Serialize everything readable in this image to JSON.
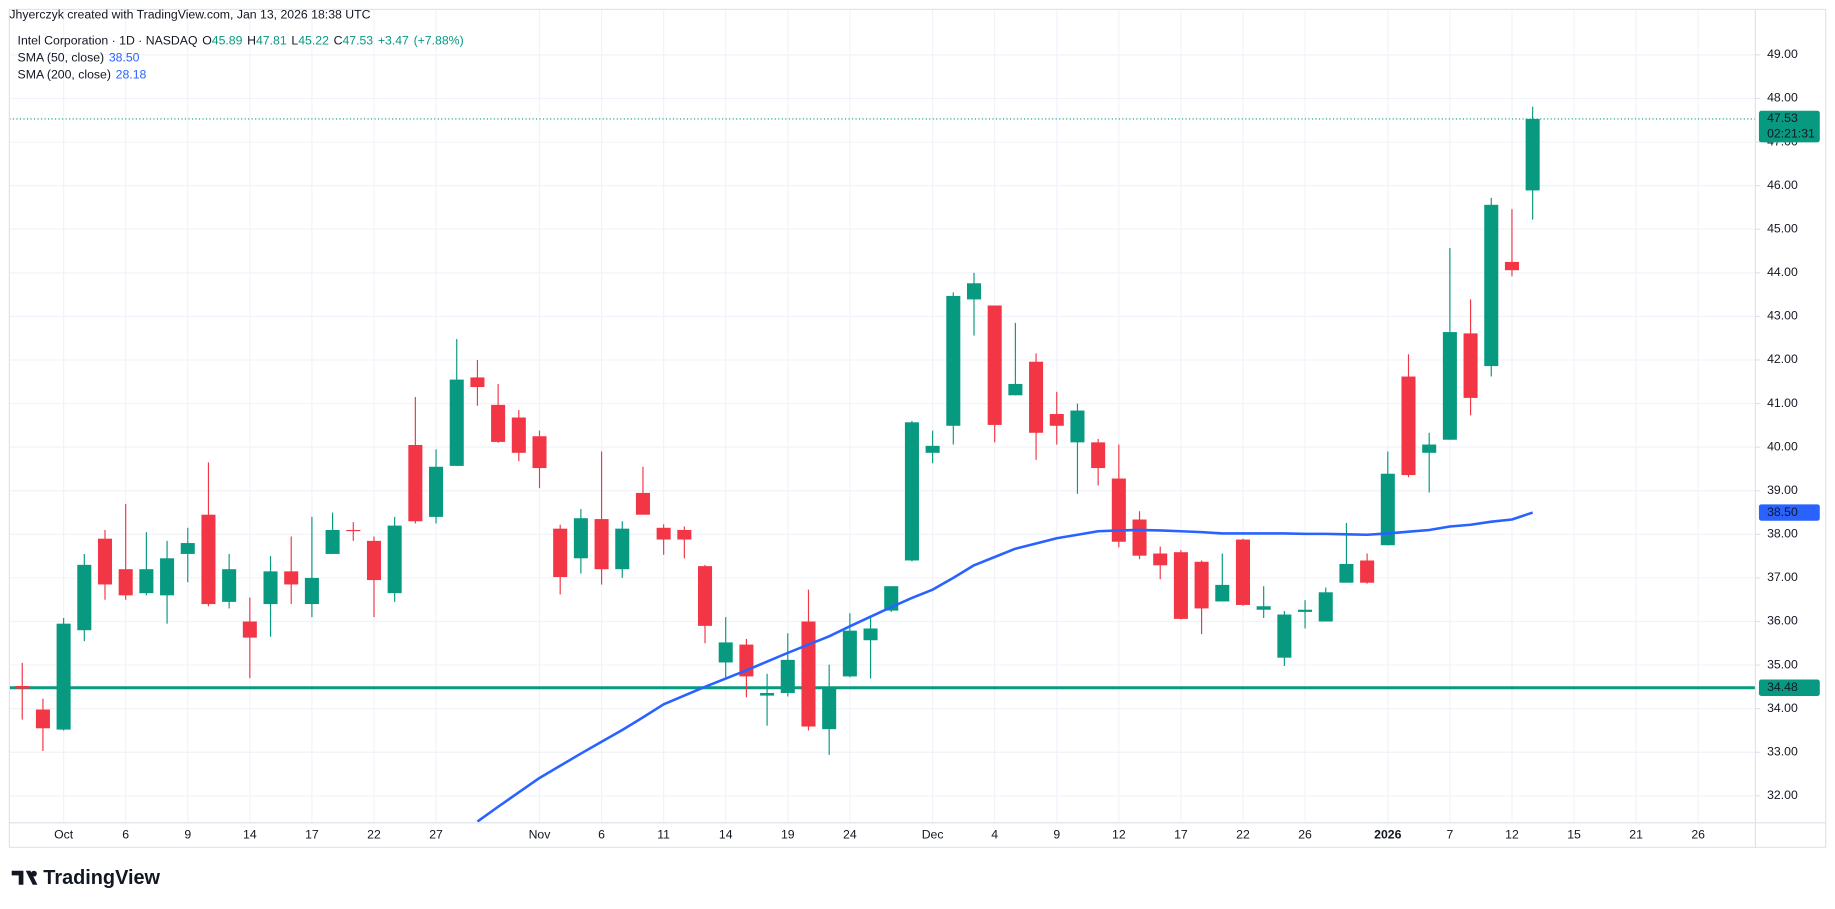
{
  "header": "Jhyerczyk created with TradingView.com, Jan 13, 2026 18:38 UTC",
  "footer_brand": "TradingView",
  "chart_data": {
    "type": "candlestick",
    "title": "Intel Corporation · 1D · NASDAQ",
    "legend": {
      "ohlc": [
        {
          "key": "O",
          "value": 45.89
        },
        {
          "key": "H",
          "value": 47.81
        },
        {
          "key": "L",
          "value": 45.22
        },
        {
          "key": "C",
          "value": 47.53
        }
      ],
      "change": {
        "value": 3.47,
        "label": "+3.47"
      },
      "change_pct": {
        "value": 7.88,
        "label": "(+7.88%)"
      }
    },
    "up_color": "#089981",
    "down_color": "#f23645",
    "categories": [
      null,
      null,
      "Oct",
      null,
      null,
      "6",
      null,
      null,
      "9",
      null,
      null,
      "14",
      null,
      null,
      "17",
      null,
      null,
      "22",
      null,
      null,
      "27",
      null,
      null,
      null,
      null,
      "Nov",
      null,
      null,
      "6",
      null,
      null,
      "11",
      null,
      null,
      "14",
      null,
      null,
      "19",
      null,
      null,
      "24",
      null,
      null,
      null,
      "Dec",
      null,
      null,
      "4",
      null,
      null,
      "9",
      null,
      null,
      "12",
      null,
      null,
      "17",
      null,
      null,
      "22",
      null,
      null,
      "26",
      null,
      null,
      null,
      "2026",
      null,
      null,
      "7",
      null,
      null,
      "12",
      null,
      null,
      "15",
      null,
      null,
      "21",
      null,
      null,
      "26"
    ],
    "open": [
      34.52,
      33.98,
      33.52,
      35.8,
      37.9,
      37.2,
      36.65,
      36.6,
      37.55,
      38.45,
      36.45,
      36.0,
      36.4,
      37.15,
      36.4,
      37.55,
      38.1,
      37.85,
      36.65,
      40.05,
      38.4,
      39.57,
      41.6,
      40.97,
      40.68,
      40.25,
      38.13,
      37.45,
      38.35,
      37.2,
      38.95,
      38.15,
      38.1,
      37.27,
      35.06,
      35.47,
      34.3,
      34.36,
      36.0,
      33.53,
      34.74,
      35.57,
      36.25,
      37.4,
      39.87,
      40.49,
      43.39,
      43.25,
      41.19,
      41.96,
      40.76,
      40.11,
      40.11,
      39.28,
      38.34,
      37.56,
      37.59,
      37.37,
      36.46,
      37.88,
      36.27,
      35.17,
      36.22,
      36.0,
      36.89,
      37.4,
      37.75,
      41.62,
      39.87,
      40.17,
      42.61,
      41.86,
      44.25,
      45.89,
      null,
      null,
      null,
      null,
      null,
      null,
      null,
      null
    ],
    "high": [
      35.05,
      34.23,
      36.08,
      37.55,
      38.1,
      38.7,
      38.05,
      37.85,
      38.15,
      39.65,
      37.55,
      36.55,
      37.5,
      37.95,
      38.4,
      38.5,
      38.28,
      37.95,
      38.4,
      41.15,
      39.95,
      42.48,
      42.0,
      41.45,
      40.85,
      40.38,
      38.22,
      38.58,
      39.9,
      38.3,
      39.55,
      38.23,
      38.18,
      37.3,
      36.1,
      35.6,
      34.8,
      35.73,
      36.73,
      35.01,
      36.19,
      36.08,
      36.81,
      40.6,
      40.38,
      43.55,
      44.0,
      43.25,
      42.85,
      42.15,
      41.27,
      41.0,
      40.19,
      40.06,
      38.53,
      37.72,
      37.64,
      37.4,
      37.56,
      37.9,
      36.81,
      36.24,
      36.49,
      36.78,
      38.26,
      37.56,
      39.9,
      42.13,
      40.33,
      44.57,
      43.39,
      45.72,
      45.46,
      47.81,
      null,
      null,
      null,
      null,
      null,
      null,
      null,
      null
    ],
    "low": [
      33.75,
      33.03,
      33.5,
      35.55,
      36.5,
      36.5,
      36.6,
      35.95,
      36.9,
      36.35,
      36.3,
      34.7,
      35.65,
      36.4,
      36.1,
      37.55,
      37.85,
      36.1,
      36.45,
      38.25,
      38.25,
      39.57,
      40.95,
      40.1,
      39.68,
      39.06,
      36.62,
      37.1,
      36.85,
      37.0,
      38.45,
      37.53,
      37.45,
      35.5,
      34.72,
      34.26,
      33.61,
      34.28,
      33.5,
      32.94,
      34.72,
      34.69,
      36.22,
      37.38,
      39.63,
      40.06,
      42.56,
      40.11,
      41.19,
      39.71,
      40.06,
      38.93,
      39.12,
      37.7,
      37.43,
      36.97,
      36.05,
      35.71,
      36.46,
      36.36,
      36.08,
      34.98,
      35.84,
      36.0,
      36.89,
      36.87,
      37.75,
      39.31,
      38.96,
      40.17,
      40.73,
      41.62,
      43.92,
      45.22,
      null,
      null,
      null,
      null,
      null,
      null,
      null,
      null
    ],
    "close": [
      34.46,
      33.55,
      35.95,
      37.3,
      36.85,
      36.6,
      37.2,
      37.45,
      37.8,
      36.4,
      37.2,
      35.63,
      37.15,
      36.85,
      37.0,
      38.1,
      38.08,
      36.95,
      38.2,
      38.3,
      39.55,
      41.55,
      41.38,
      40.12,
      39.87,
      39.52,
      37.02,
      38.37,
      37.2,
      38.13,
      38.45,
      37.88,
      37.88,
      35.9,
      35.52,
      34.74,
      34.36,
      35.12,
      33.59,
      34.5,
      35.79,
      35.84,
      36.81,
      40.57,
      40.03,
      43.47,
      43.76,
      40.51,
      41.45,
      40.33,
      40.49,
      40.84,
      39.52,
      37.83,
      37.51,
      37.29,
      36.06,
      36.3,
      36.84,
      36.38,
      36.35,
      36.16,
      36.27,
      36.67,
      37.32,
      36.89,
      39.39,
      39.36,
      40.06,
      42.64,
      41.13,
      45.56,
      44.06,
      47.53,
      null,
      null,
      null,
      null,
      null,
      null,
      null,
      null
    ],
    "series": [
      {
        "name": "SMA (50, close)",
        "color": "#2962ff",
        "last_value": {
          "value": 38.5,
          "label": "38.50"
        },
        "values": [
          null,
          null,
          null,
          null,
          null,
          null,
          null,
          null,
          null,
          null,
          null,
          null,
          null,
          null,
          null,
          null,
          null,
          null,
          null,
          null,
          null,
          null,
          31.41,
          31.75,
          32.08,
          32.41,
          32.69,
          32.97,
          33.24,
          33.51,
          33.8,
          34.1,
          34.3,
          34.5,
          34.69,
          34.88,
          35.08,
          35.28,
          35.47,
          35.66,
          35.89,
          36.11,
          36.33,
          36.54,
          36.73,
          37.0,
          37.29,
          37.48,
          37.67,
          37.79,
          37.91,
          37.99,
          38.07,
          38.09,
          38.1,
          38.09,
          38.07,
          38.05,
          38.02,
          38.02,
          38.02,
          38.02,
          38.01,
          38.01,
          38.0,
          37.99,
          38.02,
          38.06,
          38.1,
          38.18,
          38.22,
          38.29,
          38.34,
          38.5,
          null,
          null,
          null,
          null,
          null,
          null,
          null,
          null
        ]
      },
      {
        "name": "SMA (200, close)",
        "color": "#2962ff",
        "last_value": {
          "value": 28.18
        }
      }
    ],
    "last_price": {
      "value": 47.53,
      "countdown": "02:21:31"
    },
    "hlines": [
      {
        "value": 34.48,
        "color": "#089981"
      }
    ],
    "ylim": [
      31.41,
      49.99
    ],
    "yticks": [
      {
        "value": 32,
        "label": "32.00"
      },
      {
        "value": 33,
        "label": "33.00"
      },
      {
        "value": 34,
        "label": "34.00"
      },
      {
        "value": 35,
        "label": "35.00"
      },
      {
        "value": 36,
        "label": "36.00"
      },
      {
        "value": 37,
        "label": "37.00"
      },
      {
        "value": 38,
        "label": "38.00"
      },
      {
        "value": 39,
        "label": "39.00"
      },
      {
        "value": 40,
        "label": "40.00"
      },
      {
        "value": 41,
        "label": "41.00"
      },
      {
        "value": 42,
        "label": "42.00"
      },
      {
        "value": 43,
        "label": "43.00"
      },
      {
        "value": 44,
        "label": "44.00"
      },
      {
        "value": 45,
        "label": "45.00"
      },
      {
        "value": 46,
        "label": "46.00"
      },
      {
        "value": 47,
        "label": "47.00"
      },
      {
        "value": 48,
        "label": "48.00"
      },
      {
        "value": 49,
        "label": "49.00"
      }
    ],
    "grid": true
  }
}
